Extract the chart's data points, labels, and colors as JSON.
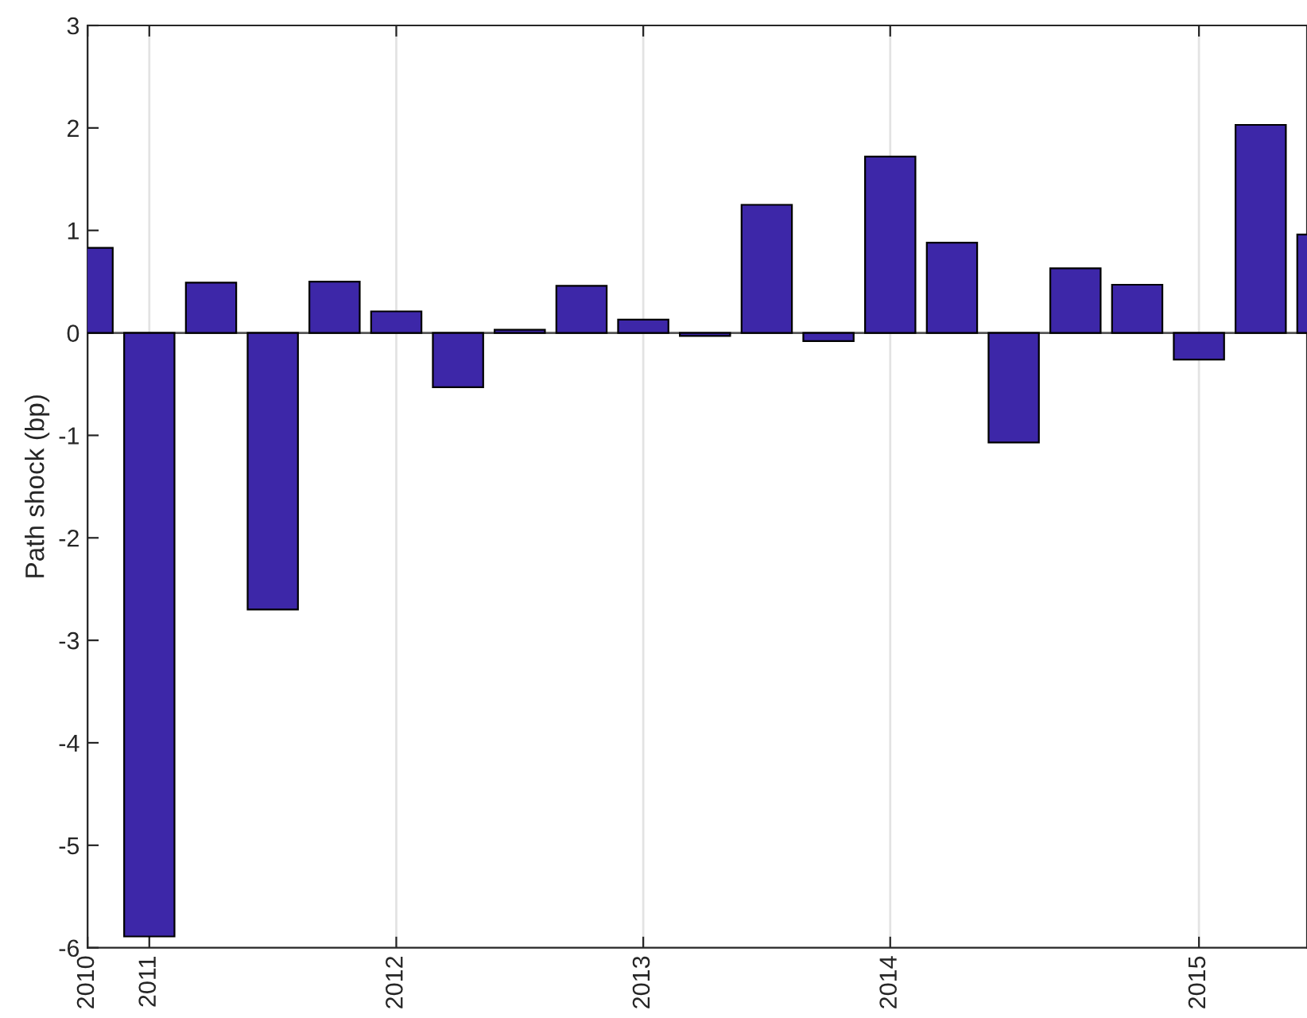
{
  "chart_data": {
    "type": "bar",
    "ylabel": "Path shock (bp)",
    "categories": [
      "2010",
      "2011",
      null,
      null,
      null,
      "2012",
      null,
      null,
      null,
      "2013",
      null,
      null,
      null,
      "2014",
      null,
      null,
      null,
      null,
      "2015",
      null,
      null
    ],
    "values": [
      0.83,
      -5.89,
      0.49,
      -2.7,
      0.5,
      0.21,
      -0.53,
      0.03,
      0.46,
      0.13,
      -0.03,
      1.25,
      -0.08,
      1.72,
      0.88,
      -1.07,
      0.63,
      0.47,
      -0.26,
      2.03,
      0.96
    ],
    "color": "#3d27a8",
    "ylim": [
      -6,
      3
    ],
    "yticks": [
      -6,
      -5,
      -4,
      -3,
      -2,
      -1,
      0,
      1,
      2,
      3
    ],
    "ref_lines": [
      {
        "axis": "y",
        "value": 0,
        "color": "#555555"
      }
    ],
    "grid": "x",
    "legend": false
  }
}
